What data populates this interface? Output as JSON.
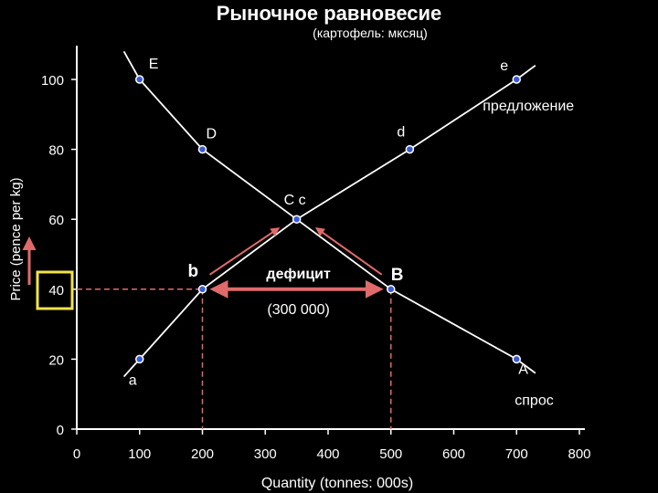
{
  "title": "Рыночное равновесие",
  "subtitle": "(картофель: мксяц)",
  "colors": {
    "background": "#000000",
    "axis": "#ffffff",
    "curve": "#ffffff",
    "point": "#3a5bd9",
    "arrow": "#e06a6a",
    "guide": "#e06a6a",
    "highlight_box": "#f2e34a"
  },
  "chart_data": {
    "type": "line",
    "xlabel": "Quantity (tonnes: 000s)",
    "ylabel": "Price (pence per kg)",
    "xlim": [
      0,
      800
    ],
    "ylim": [
      0,
      100
    ],
    "x_ticks": [
      0,
      100,
      200,
      300,
      400,
      500,
      600,
      700,
      800
    ],
    "y_ticks": [
      0,
      20,
      40,
      60,
      80,
      100
    ],
    "series": [
      {
        "name": "спрос",
        "x": [
          75,
          100,
          200,
          350,
          500,
          700,
          730
        ],
        "y": [
          108,
          100,
          80,
          60,
          40,
          20,
          16
        ]
      },
      {
        "name": "предложение",
        "x": [
          75,
          100,
          200,
          350,
          530,
          700,
          730
        ],
        "y": [
          15,
          20,
          40,
          60,
          80,
          100,
          104
        ]
      }
    ],
    "points": [
      {
        "label": "E",
        "x": 100,
        "y": 100
      },
      {
        "label": "e",
        "x": 700,
        "y": 100
      },
      {
        "label": "D",
        "x": 200,
        "y": 80
      },
      {
        "label": "d",
        "x": 530,
        "y": 80
      },
      {
        "label": "C c",
        "x": 350,
        "y": 60
      },
      {
        "label": "b",
        "x": 200,
        "y": 40
      },
      {
        "label": "B",
        "x": 500,
        "y": 40
      },
      {
        "label": "a",
        "x": 100,
        "y": 20
      },
      {
        "label": "A",
        "x": 700,
        "y": 20
      }
    ],
    "annotations": {
      "shortage_label": "дефицит",
      "shortage_amount": "(300 000)",
      "shortage_from_x": 200,
      "shortage_to_x": 500,
      "shortage_price": 40
    }
  }
}
